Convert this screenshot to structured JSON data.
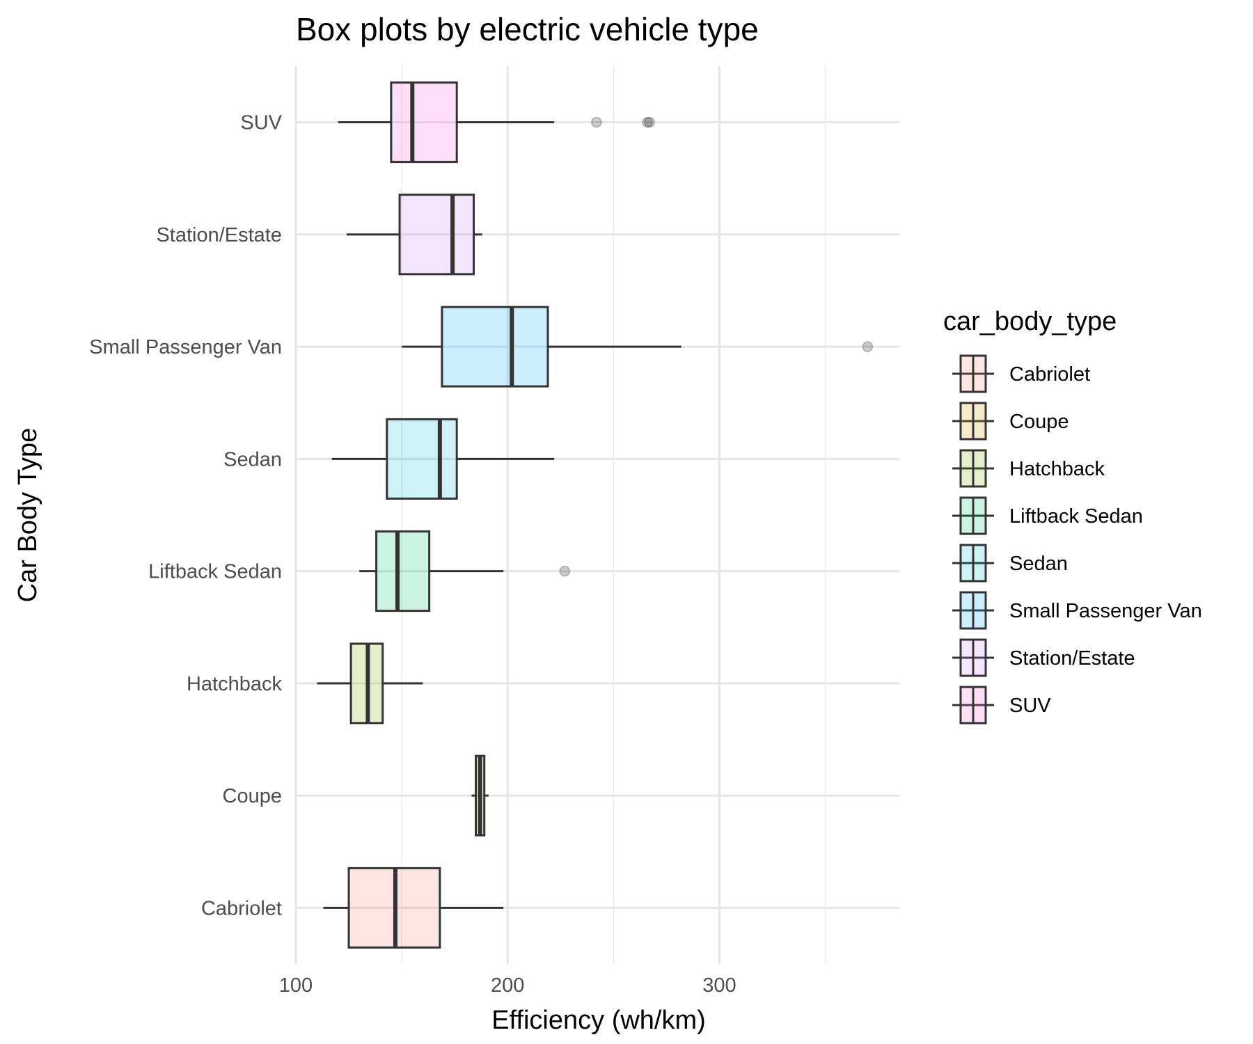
{
  "chart_data": {
    "type": "box",
    "title": "Box plots by electric vehicle type",
    "xlabel": "Efficiency (wh/km)",
    "ylabel": "Car Body Type",
    "xlim": [
      100,
      385
    ],
    "x_ticks": [
      100,
      200,
      300
    ],
    "x_tick_labels": [
      "100",
      "200",
      "300"
    ],
    "minor_x_gridlines": [
      150,
      250,
      350
    ],
    "grid": true,
    "legend": {
      "title": "car_body_type",
      "position": "right",
      "entries": [
        "Cabriolet",
        "Coupe",
        "Hatchback",
        "Liftback Sedan",
        "Sedan",
        "Small Passenger Van",
        "Station/Estate",
        "SUV"
      ]
    },
    "categories": [
      "Cabriolet",
      "Coupe",
      "Hatchback",
      "Liftback Sedan",
      "Sedan",
      "Small Passenger Van",
      "Station/Estate",
      "SUV"
    ],
    "series": [
      {
        "category": "Cabriolet",
        "color": "#f8766d",
        "whisker_low": 113,
        "q1": 125,
        "median": 147,
        "q3": 168,
        "whisker_high": 198,
        "outliers": []
      },
      {
        "category": "Coupe",
        "color": "#cd9600",
        "whisker_low": 183,
        "q1": 185,
        "median": 187,
        "q3": 189,
        "whisker_high": 191,
        "outliers": []
      },
      {
        "category": "Hatchback",
        "color": "#7cae00",
        "whisker_low": 110,
        "q1": 126,
        "median": 134,
        "q3": 141,
        "whisker_high": 160,
        "outliers": []
      },
      {
        "category": "Liftback Sedan",
        "color": "#00be67",
        "whisker_low": 130,
        "q1": 138,
        "median": 148,
        "q3": 163,
        "whisker_high": 198,
        "outliers": [
          227
        ]
      },
      {
        "category": "Sedan",
        "color": "#00bfc4",
        "whisker_low": 117,
        "q1": 143,
        "median": 168,
        "q3": 176,
        "whisker_high": 222,
        "outliers": []
      },
      {
        "category": "Small Passenger Van",
        "color": "#00a9ff",
        "whisker_low": 150,
        "q1": 169,
        "median": 202,
        "q3": 219,
        "whisker_high": 282,
        "outliers": [
          370
        ]
      },
      {
        "category": "Station/Estate",
        "color": "#c77cff",
        "whisker_low": 124,
        "q1": 149,
        "median": 174,
        "q3": 184,
        "whisker_high": 188,
        "outliers": []
      },
      {
        "category": "SUV",
        "color": "#ff61cc",
        "whisker_low": 120,
        "q1": 145,
        "median": 155,
        "q3": 176,
        "whisker_high": 222,
        "outliers": [
          242,
          266,
          267
        ]
      }
    ]
  }
}
